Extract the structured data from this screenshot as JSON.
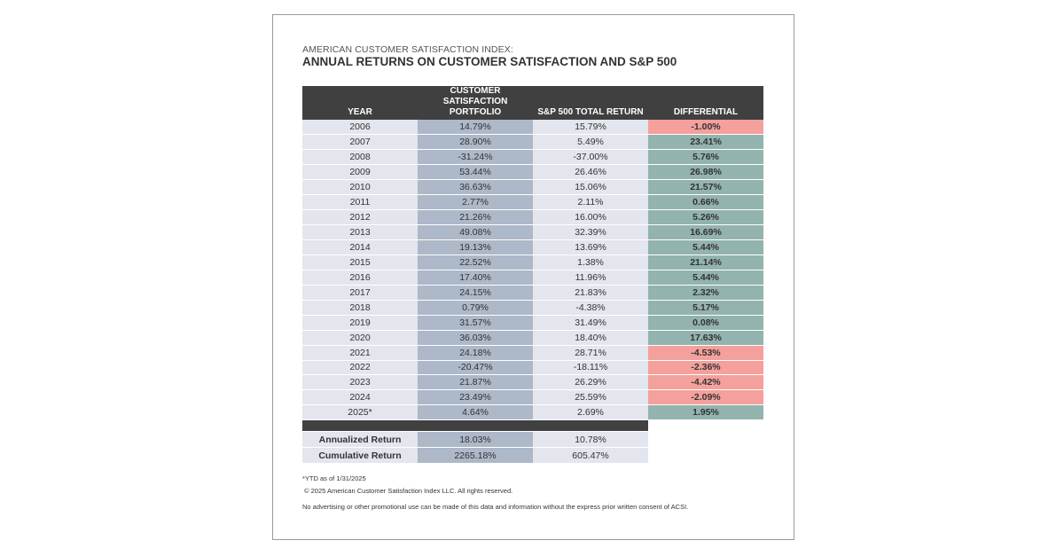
{
  "subtitle": "AMERICAN CUSTOMER SATISFACTION INDEX:",
  "title": "ANNUAL RETURNS ON CUSTOMER SATISFACTION AND S&P 500",
  "colors": {
    "header": "#404040",
    "portfolio": "#adb8c8",
    "light": "#e3e6ee",
    "positive": "#93b3ae",
    "negative": "#f4a09c"
  },
  "chart_data": {
    "type": "table",
    "columns": [
      "YEAR",
      "CUSTOMER SATISFACTION PORTFOLIO",
      "S&P 500 TOTAL RETURN",
      "DIFFERENTIAL"
    ],
    "rows": [
      [
        "2006",
        "14.79%",
        "15.79%",
        "-1.00%"
      ],
      [
        "2007",
        "28.90%",
        "5.49%",
        "23.41%"
      ],
      [
        "2008",
        "-31.24%",
        "-37.00%",
        "5.76%"
      ],
      [
        "2009",
        "53.44%",
        "26.46%",
        "26.98%"
      ],
      [
        "2010",
        "36.63%",
        "15.06%",
        "21.57%"
      ],
      [
        "2011",
        "2.77%",
        "2.11%",
        "0.66%"
      ],
      [
        "2012",
        "21.26%",
        "16.00%",
        "5.26%"
      ],
      [
        "2013",
        "49.08%",
        "32.39%",
        "16.69%"
      ],
      [
        "2014",
        "19.13%",
        "13.69%",
        "5.44%"
      ],
      [
        "2015",
        "22.52%",
        "1.38%",
        "21.14%"
      ],
      [
        "2016",
        "17.40%",
        "11.96%",
        "5.44%"
      ],
      [
        "2017",
        "24.15%",
        "21.83%",
        "2.32%"
      ],
      [
        "2018",
        "0.79%",
        "-4.38%",
        "5.17%"
      ],
      [
        "2019",
        "31.57%",
        "31.49%",
        "0.08%"
      ],
      [
        "2020",
        "36.03%",
        "18.40%",
        "17.63%"
      ],
      [
        "2021",
        "24.18%",
        "28.71%",
        "-4.53%"
      ],
      [
        "2022",
        "-20.47%",
        "-18.11%",
        "-2.36%"
      ],
      [
        "2023",
        "21.87%",
        "26.29%",
        "-4.42%"
      ],
      [
        "2024",
        "23.49%",
        "25.59%",
        "-2.09%"
      ],
      [
        "2025*",
        "4.64%",
        "2.69%",
        "1.95%"
      ]
    ],
    "summary": [
      [
        "Annualized Return",
        "18.03%",
        "10.78%"
      ],
      [
        "Cumulative Return",
        "2265.18%",
        "605.47%"
      ]
    ]
  },
  "footnotes": {
    "ytd": "*YTD as of 1/31/2025",
    "copyright": "© 2025 American Customer Satisfaction Index LLC. All rights reserved.",
    "disclaimer": "No advertising or other promotional use can be made of this data and information without the express prior written consent of ACSI."
  }
}
